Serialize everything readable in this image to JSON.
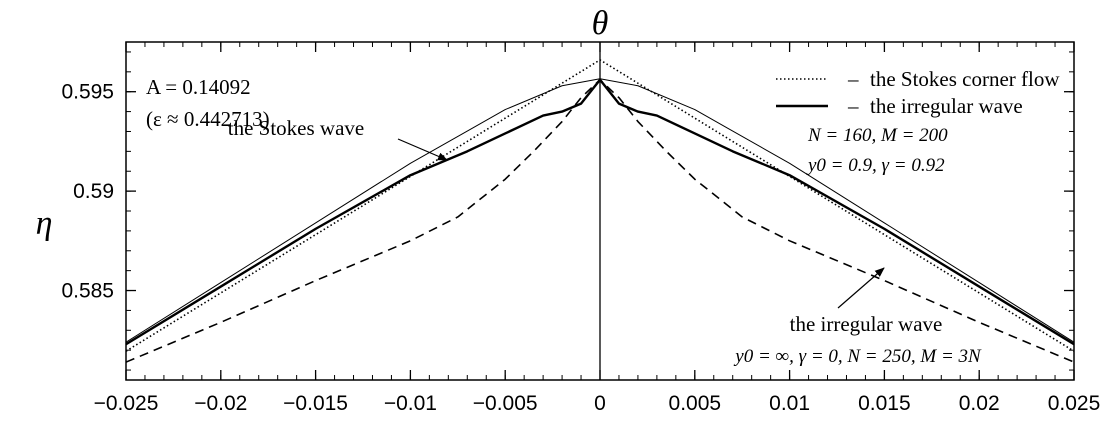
{
  "chart_data": {
    "type": "line",
    "xlabel": "θ",
    "ylabel": "η",
    "xlim": [
      -0.025,
      0.025
    ],
    "ylim": [
      0.5805,
      0.5975
    ],
    "x_ticks": [
      -0.025,
      -0.02,
      -0.015,
      -0.01,
      -0.005,
      0,
      0.005,
      0.01,
      0.015,
      0.02,
      0.025
    ],
    "x_tick_labels": [
      "−0.025",
      "−0.02",
      "−0.015",
      "−0.01",
      "−0.005",
      "0",
      "0.005",
      "0.01",
      "0.015",
      "0.02",
      "0.025"
    ],
    "y_ticks": [
      0.585,
      0.59,
      0.595
    ],
    "y_tick_labels": [
      "0.585",
      "0.59",
      "0.595"
    ],
    "grid": false,
    "vertical_line_x": 0,
    "series": [
      {
        "name": "the Stokes corner flow",
        "style": "dotted",
        "x": [
          -0.025,
          0,
          0.025
        ],
        "y": [
          0.58195,
          0.5966,
          0.58195
        ]
      },
      {
        "name": "the irregular wave",
        "style": "solid-thick",
        "x": [
          -0.025,
          -0.02,
          -0.015,
          -0.01,
          -0.007,
          -0.005,
          -0.003,
          -0.002,
          -0.001,
          0,
          0.001,
          0.002,
          0.003,
          0.005,
          0.007,
          0.01,
          0.015,
          0.02,
          0.025
        ],
        "y": [
          0.5823,
          0.5852,
          0.5881,
          0.5908,
          0.592,
          0.5929,
          0.5938,
          0.594,
          0.5944,
          0.5956,
          0.5944,
          0.594,
          0.5938,
          0.5929,
          0.592,
          0.5908,
          0.5881,
          0.5852,
          0.5823
        ]
      },
      {
        "name": "",
        "style": "solid-thin",
        "x": [
          -0.025,
          -0.02,
          -0.015,
          -0.01,
          -0.005,
          -0.002,
          0,
          0.002,
          0.005,
          0.01,
          0.015,
          0.02,
          0.025
        ],
        "y": [
          0.5824,
          0.5854,
          0.5884,
          0.5914,
          0.5941,
          0.5953,
          0.59565,
          0.5953,
          0.5941,
          0.5914,
          0.5884,
          0.5854,
          0.5824
        ]
      },
      {
        "name": "",
        "style": "dashed",
        "x": [
          -0.025,
          -0.02,
          -0.015,
          -0.01,
          -0.0075,
          -0.005,
          -0.0035,
          -0.002,
          -0.001,
          0,
          0.001,
          0.002,
          0.0035,
          0.005,
          0.0075,
          0.01,
          0.015,
          0.02,
          0.025
        ],
        "y": [
          0.5814,
          0.5834,
          0.5855,
          0.5875,
          0.5887,
          0.5906,
          0.592,
          0.5935,
          0.5947,
          0.5956,
          0.5947,
          0.5935,
          0.592,
          0.5906,
          0.5887,
          0.5875,
          0.5855,
          0.5834,
          0.5814
        ]
      }
    ],
    "legend": {
      "placement": "top-right",
      "dash": "–",
      "entries": [
        {
          "label": "the Stokes corner flow",
          "style": "dotted"
        },
        {
          "label": "the irregular wave",
          "style": "solid-thick"
        }
      ],
      "params_line1": "N = 160, M = 200",
      "params_line2": "y0 = 0.9, γ = 0.92"
    },
    "annotations": {
      "amplitude_line1": "A = 0.14092",
      "amplitude_line2": "(ε ≈ 0.442713)",
      "stokes_wave_label": "the Stokes wave",
      "irregular_wave_label": "the irregular wave",
      "irregular_wave_params": "y0 = ∞, γ = 0, N = 250, M = 3N"
    }
  }
}
